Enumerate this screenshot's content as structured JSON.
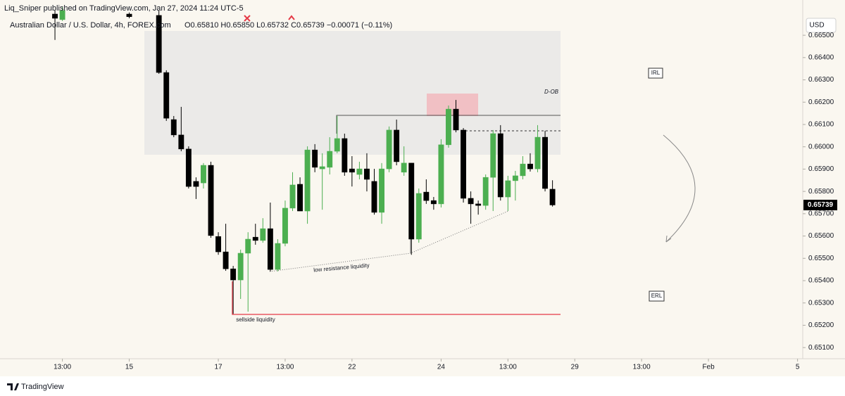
{
  "chart_data": {
    "type": "candlestick",
    "author_line": "Liq_Sniper published on TradingView.com, Jan 27, 2024 11:24 UTC-5",
    "title": "Australian Dollar / U.S. Dollar, 4h, FOREX.com",
    "ohlc_line": "O0.65810 H0.65850 L0.65732 C0.65739 −0.00071 (−0.11%)",
    "currency_button": "USD",
    "brand": "TradingView",
    "up_color": "#4caf50",
    "down_color": "#000000",
    "open": [
      0.66595,
      0.6657,
      null,
      null,
      null,
      null,
      null,
      null,
      null,
      null,
      0.66595,
      null,
      null,
      null,
      0.66589,
      0.66333,
      0.66122,
      0.66053,
      0.6599,
      0.65845,
      0.65838,
      0.65917,
      0.65598,
      0.65529,
      0.65453,
      0.65403,
      0.65523,
      0.65595,
      0.6558,
      0.65633,
      0.6545,
      0.65567,
      0.65725,
      0.65832,
      0.65712,
      0.65986,
      0.65901,
      0.65908,
      0.6598,
      0.66037,
      0.65901,
      0.65876,
      0.65901,
      0.65845,
      0.65706,
      0.65901,
      0.66075,
      0.65886,
      0.65927,
      0.65586,
      0.65797,
      0.65759,
      0.65744,
      0.66009,
      0.66169,
      0.66075,
      0.65769,
      0.65744,
      0.65737,
      0.65863,
      0.66059,
      0.65775,
      0.65848,
      0.6587,
      0.65923,
      0.65901,
      0.66043,
      0.6581
    ],
    "high": [
      0.66611,
      0.66627,
      null,
      null,
      null,
      null,
      null,
      null,
      null,
      null,
      0.66602,
      null,
      null,
      null,
      0.66611,
      0.66343,
      0.66138,
      0.66179,
      0.66002,
      0.65863,
      0.65927,
      0.65933,
      0.65617,
      0.65655,
      0.65466,
      0.65539,
      0.65617,
      0.65655,
      0.6568,
      0.6575,
      0.65586,
      0.65759,
      0.65886,
      0.65863,
      0.66002,
      0.66012,
      0.65971,
      0.66043,
      0.66138,
      0.66059,
      0.65958,
      0.65933,
      0.65971,
      0.65901,
      0.65927,
      0.66091,
      0.66122,
      0.66002,
      0.65927,
      0.65813,
      0.65854,
      0.65775,
      0.66034,
      0.66185,
      0.6621,
      0.66084,
      0.658,
      0.65759,
      0.65876,
      0.66075,
      0.66097,
      0.6587,
      0.65892,
      0.65958,
      0.65971,
      0.66097,
      0.66072,
      0.6585
    ],
    "low": [
      0.66479,
      0.66564,
      null,
      null,
      null,
      null,
      null,
      null,
      null,
      null,
      0.66576,
      null,
      null,
      null,
      0.66327,
      0.66116,
      0.66043,
      0.6598,
      0.65813,
      0.65766,
      0.65813,
      0.65592,
      0.65516,
      0.65444,
      0.65251,
      0.65318,
      0.65261,
      0.65561,
      0.6557,
      0.65441,
      0.65441,
      0.65554,
      0.65712,
      0.65712,
      0.65655,
      0.65886,
      0.65718,
      0.65876,
      0.65971,
      0.6587,
      0.65822,
      0.65854,
      0.658,
      0.65696,
      0.65655,
      0.65886,
      0.65917,
      0.6587,
      0.65516,
      0.6557,
      0.65744,
      0.65718,
      0.65728,
      0.65996,
      0.66065,
      0.6575,
      0.65655,
      0.65696,
      0.65718,
      0.65712,
      0.65759,
      0.65712,
      0.65759,
      0.65854,
      0.65889,
      0.65886,
      0.658,
      0.65732
    ],
    "close": [
      0.66576,
      0.66611,
      null,
      null,
      null,
      null,
      null,
      null,
      null,
      null,
      0.66583,
      null,
      null,
      null,
      0.66333,
      0.66128,
      0.66053,
      0.6599,
      0.65822,
      0.65822,
      0.65917,
      0.65602,
      0.65529,
      0.65453,
      0.65403,
      0.65523,
      0.65586,
      0.6558,
      0.65633,
      0.6545,
      0.65567,
      0.65725,
      0.65829,
      0.65712,
      0.65986,
      0.65908,
      0.65911,
      0.6598,
      0.66037,
      0.65886,
      0.65886,
      0.65901,
      0.65854,
      0.65706,
      0.65901,
      0.66075,
      0.65933,
      0.65927,
      0.65586,
      0.65791,
      0.65759,
      0.65744,
      0.66009,
      0.66169,
      0.66075,
      0.65769,
      0.65744,
      0.65737,
      0.65863,
      0.66059,
      0.65775,
      0.65848,
      0.6587,
      0.65923,
      0.65901,
      0.66043,
      0.65813,
      0.65739
    ],
    "xlim": [
      -7.4,
      100.7
    ],
    "xticks": [
      {
        "value": 1,
        "label": "13:00"
      },
      {
        "value": 10,
        "label": "15"
      },
      {
        "value": 22,
        "label": "17"
      },
      {
        "value": 31,
        "label": "13:00"
      },
      {
        "value": 40,
        "label": "22"
      },
      {
        "value": 52,
        "label": "24"
      },
      {
        "value": 61,
        "label": "13:00"
      },
      {
        "value": 70,
        "label": "29"
      },
      {
        "value": 79,
        "label": "13:00"
      },
      {
        "value": 88,
        "label": "Feb"
      },
      {
        "value": 100,
        "label": "5"
      }
    ],
    "ylim": [
      0.6505,
      0.66658
    ],
    "yticks": [
      {
        "value": 0.651,
        "label": "0.65100"
      },
      {
        "value": 0.652,
        "label": "0.65200"
      },
      {
        "value": 0.653,
        "label": "0.65300"
      },
      {
        "value": 0.654,
        "label": "0.65400"
      },
      {
        "value": 0.655,
        "label": "0.65500"
      },
      {
        "value": 0.656,
        "label": "0.65600"
      },
      {
        "value": 0.657,
        "label": "0.65700"
      },
      {
        "value": 0.658,
        "label": "0.65800"
      },
      {
        "value": 0.659,
        "label": "0.65900"
      },
      {
        "value": 0.66,
        "label": "0.66000"
      },
      {
        "value": 0.661,
        "label": "0.66100"
      },
      {
        "value": 0.662,
        "label": "0.66200"
      },
      {
        "value": 0.663,
        "label": "0.66300"
      },
      {
        "value": 0.664,
        "label": "0.66400"
      },
      {
        "value": 0.665,
        "label": "0.66500"
      }
    ],
    "grid": false,
    "annotations": {
      "d_ob": "D-OB",
      "irl": "IRL",
      "erl": "ERL",
      "low_resistance": "low resistance liquidity",
      "sellside": "sellside liquidity"
    }
  }
}
